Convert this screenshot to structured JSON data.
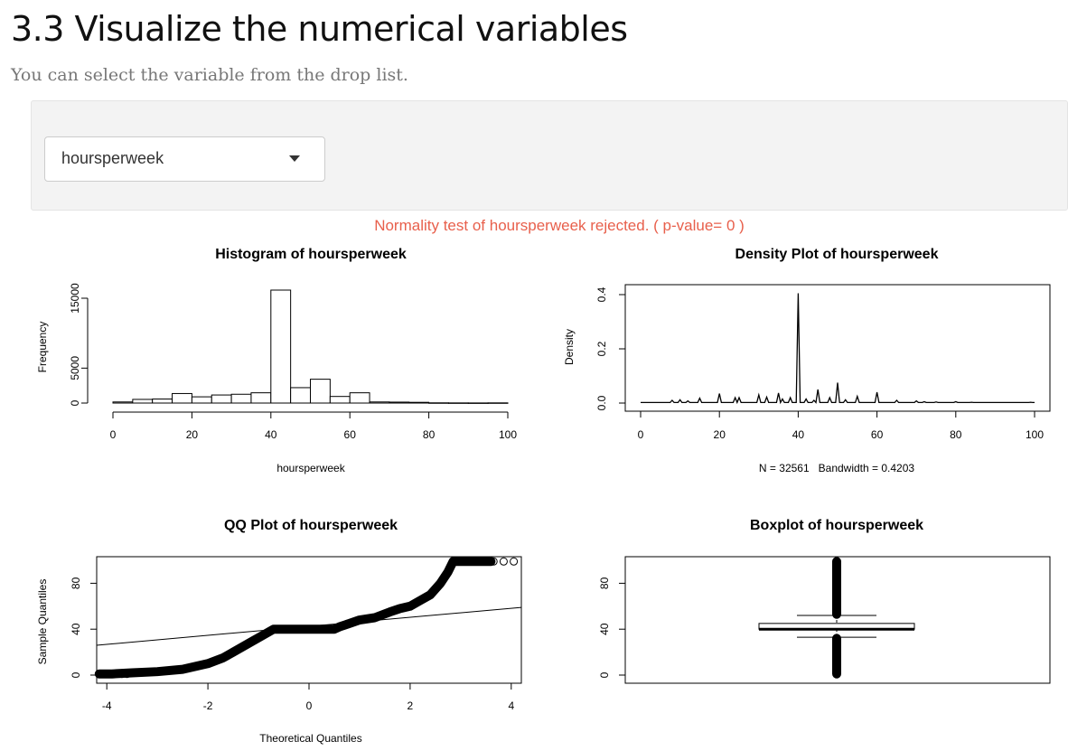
{
  "page": {
    "title": "3.3 Visualize the numerical variables",
    "subtitle": "You can select the variable from the drop list."
  },
  "selector": {
    "selected": "hoursperweek",
    "icon": "chevron-down-icon"
  },
  "normality_message": "Normality test of hoursperweek rejected. ( p-value= 0 )",
  "colors": {
    "alert": "#e8604c",
    "axis": "#000000",
    "well": "#f3f3f3"
  },
  "chart_data": [
    {
      "type": "bar",
      "title": "Histogram of hoursperweek",
      "xlabel": "hoursperweek",
      "ylabel": "Frequency",
      "xlim": [
        0,
        100
      ],
      "ylim": [
        0,
        16000
      ],
      "x_ticks": [
        "0",
        "20",
        "40",
        "60",
        "80",
        "100"
      ],
      "y_ticks": [
        "0",
        "5000",
        "15000"
      ],
      "bins": [
        {
          "from": 0,
          "to": 5,
          "value": 150
        },
        {
          "from": 5,
          "to": 10,
          "value": 500
        },
        {
          "from": 10,
          "to": 15,
          "value": 550
        },
        {
          "from": 15,
          "to": 20,
          "value": 1300
        },
        {
          "from": 20,
          "to": 25,
          "value": 850
        },
        {
          "from": 25,
          "to": 30,
          "value": 1100
        },
        {
          "from": 30,
          "to": 35,
          "value": 1200
        },
        {
          "from": 35,
          "to": 40,
          "value": 1400
        },
        {
          "from": 40,
          "to": 45,
          "value": 15400
        },
        {
          "from": 45,
          "to": 50,
          "value": 2100
        },
        {
          "from": 50,
          "to": 55,
          "value": 3250
        },
        {
          "from": 55,
          "to": 60,
          "value": 900
        },
        {
          "from": 60,
          "to": 65,
          "value": 1400
        },
        {
          "from": 65,
          "to": 70,
          "value": 150
        },
        {
          "from": 70,
          "to": 75,
          "value": 130
        },
        {
          "from": 75,
          "to": 80,
          "value": 100
        },
        {
          "from": 80,
          "to": 85,
          "value": 30
        },
        {
          "from": 85,
          "to": 90,
          "value": 20
        },
        {
          "from": 90,
          "to": 95,
          "value": 15
        },
        {
          "from": 95,
          "to": 100,
          "value": 25
        }
      ]
    },
    {
      "type": "line",
      "title": "Density Plot of hoursperweek",
      "xlabel": "N = 32561   Bandwidth = 0.4203",
      "ylabel": "Density",
      "xlim": [
        0,
        100
      ],
      "ylim": [
        0,
        0.4
      ],
      "x_ticks": [
        "0",
        "20",
        "40",
        "60",
        "80",
        "100"
      ],
      "y_ticks": [
        "0.0",
        "0.2",
        "0.4"
      ],
      "baseline": 0.002,
      "peaks": [
        {
          "x": 8,
          "y": 0.01
        },
        {
          "x": 10,
          "y": 0.012
        },
        {
          "x": 12,
          "y": 0.008
        },
        {
          "x": 15,
          "y": 0.018
        },
        {
          "x": 20,
          "y": 0.035
        },
        {
          "x": 24,
          "y": 0.02
        },
        {
          "x": 25,
          "y": 0.02
        },
        {
          "x": 30,
          "y": 0.03
        },
        {
          "x": 32,
          "y": 0.022
        },
        {
          "x": 35,
          "y": 0.037
        },
        {
          "x": 36,
          "y": 0.015
        },
        {
          "x": 38,
          "y": 0.02
        },
        {
          "x": 40,
          "y": 0.405
        },
        {
          "x": 42,
          "y": 0.015
        },
        {
          "x": 44,
          "y": 0.01
        },
        {
          "x": 45,
          "y": 0.05
        },
        {
          "x": 48,
          "y": 0.02
        },
        {
          "x": 50,
          "y": 0.075
        },
        {
          "x": 52,
          "y": 0.012
        },
        {
          "x": 55,
          "y": 0.025
        },
        {
          "x": 60,
          "y": 0.04
        },
        {
          "x": 65,
          "y": 0.01
        },
        {
          "x": 70,
          "y": 0.008
        },
        {
          "x": 72,
          "y": 0.005
        },
        {
          "x": 75,
          "y": 0.004
        },
        {
          "x": 80,
          "y": 0.005
        },
        {
          "x": 84,
          "y": 0.003
        },
        {
          "x": 99,
          "y": 0.003
        }
      ]
    },
    {
      "type": "scatter",
      "title": "QQ Plot of hoursperweek",
      "xlabel": "Theoretical Quantiles",
      "ylabel": "Sample Quantiles",
      "xlim": [
        -4.2,
        4.2
      ],
      "ylim": [
        0,
        100
      ],
      "x_ticks": [
        "-4",
        "-2",
        "0",
        "2",
        "4"
      ],
      "y_ticks": [
        "0",
        "40",
        "80"
      ],
      "curve": [
        {
          "x": -4.15,
          "y": 1
        },
        {
          "x": -3.9,
          "y": 1
        },
        {
          "x": -3.5,
          "y": 2
        },
        {
          "x": -3.0,
          "y": 3
        },
        {
          "x": -2.5,
          "y": 5
        },
        {
          "x": -2.0,
          "y": 10
        },
        {
          "x": -1.7,
          "y": 15
        },
        {
          "x": -1.5,
          "y": 20
        },
        {
          "x": -1.3,
          "y": 25
        },
        {
          "x": -1.1,
          "y": 30
        },
        {
          "x": -0.9,
          "y": 35
        },
        {
          "x": -0.7,
          "y": 40
        },
        {
          "x": 0.5,
          "y": 40
        },
        {
          "x": 0.6,
          "y": 42
        },
        {
          "x": 0.8,
          "y": 45
        },
        {
          "x": 1.0,
          "y": 48
        },
        {
          "x": 1.3,
          "y": 50
        },
        {
          "x": 1.6,
          "y": 55
        },
        {
          "x": 1.8,
          "y": 58
        },
        {
          "x": 2.0,
          "y": 60
        },
        {
          "x": 2.2,
          "y": 65
        },
        {
          "x": 2.4,
          "y": 70
        },
        {
          "x": 2.6,
          "y": 80
        },
        {
          "x": 2.75,
          "y": 90
        },
        {
          "x": 2.85,
          "y": 99
        },
        {
          "x": 3.6,
          "y": 99
        }
      ],
      "open_points": [
        {
          "x": -4.1,
          "y": 1
        },
        {
          "x": -3.85,
          "y": 1
        },
        {
          "x": -3.7,
          "y": 1
        },
        {
          "x": -3.6,
          "y": 1
        },
        {
          "x": 3.65,
          "y": 99
        },
        {
          "x": 3.85,
          "y": 99
        },
        {
          "x": 4.05,
          "y": 99
        }
      ],
      "reference_line": [
        {
          "x": -4.2,
          "y": 26
        },
        {
          "x": 4.2,
          "y": 59
        }
      ]
    },
    {
      "type": "box",
      "title": "Boxplot of hoursperweek",
      "ylim": [
        0,
        100
      ],
      "y_ticks": [
        "0",
        "40",
        "80"
      ],
      "whisker_low": 33,
      "q1": 40,
      "median": 40,
      "q3": 45,
      "whisker_high": 52,
      "outliers_low": [
        1,
        32
      ],
      "outliers_high": [
        53,
        99
      ]
    }
  ]
}
